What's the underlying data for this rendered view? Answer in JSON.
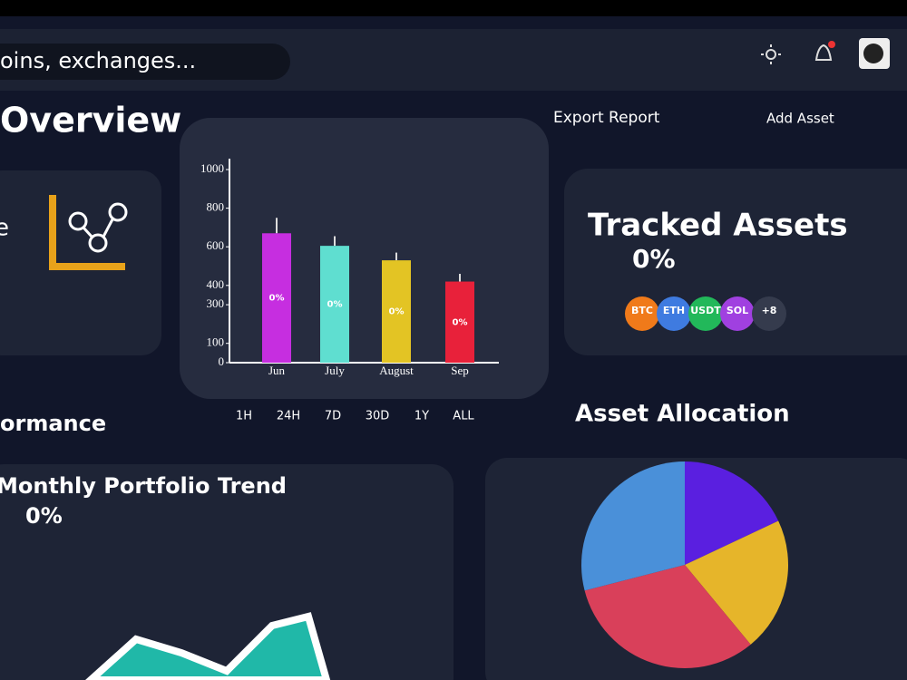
{
  "header": {
    "search_placeholder": "oins, exchanges..."
  },
  "title": "Overview",
  "actions": [
    "Export Report",
    "Add Asset"
  ],
  "left_card": {
    "label": "e"
  },
  "tracked": {
    "title": "Tracked Assets",
    "value": "0%",
    "chips": [
      "BTC",
      "ETH",
      "USDT",
      "SOL",
      "+8"
    ]
  },
  "timeframes": [
    "1H",
    "24H",
    "7D",
    "30D",
    "1Y",
    "ALL"
  ],
  "section": "ormance",
  "allocation_title": "Asset Allocation",
  "trend": {
    "title": "Monthly Portfolio Trend",
    "value": "0%"
  },
  "chart_data": [
    {
      "type": "bar",
      "categories": [
        "Jun",
        "July",
        "August",
        "Sep"
      ],
      "values": [
        670,
        605,
        530,
        420
      ],
      "errors": [
        80,
        50,
        40,
        40
      ],
      "annotations": [
        "0%",
        "0%",
        "0%",
        "0%"
      ],
      "colors": [
        "#c62ee0",
        "#5fded0",
        "#e3c424",
        "#e8213a"
      ],
      "ylim": [
        0,
        1000
      ],
      "yticks": [
        0,
        100,
        300,
        400,
        600,
        800,
        1000
      ]
    },
    {
      "type": "pie",
      "values": [
        18,
        21,
        32,
        29
      ],
      "colors": [
        "#5a1fe0",
        "#e6b52a",
        "#d9405a",
        "#4a90d9"
      ]
    }
  ]
}
